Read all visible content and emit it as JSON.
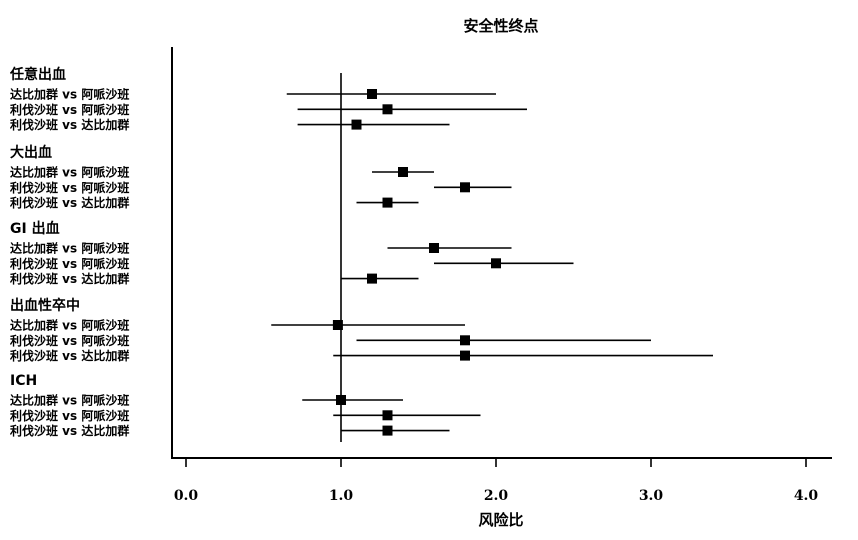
{
  "chart_data": {
    "type": "forest",
    "title": "安全性终点",
    "xlabel": "风险比",
    "xlim": [
      0,
      4.2
    ],
    "xticks": [
      0.0,
      1.0,
      2.0,
      3.0,
      4.0
    ],
    "xtick_labels": [
      "0.0",
      "1.0",
      "2.0",
      "3.0",
      "4.0"
    ],
    "reference_line": 1.0,
    "groups": [
      {
        "label": "任意出血",
        "rows": [
          {
            "label": "达比加群 vs 阿哌沙班",
            "hr": 1.2,
            "lower": 0.65,
            "upper": 2.0
          },
          {
            "label": "利伐沙班 vs 阿哌沙班",
            "hr": 1.3,
            "lower": 0.72,
            "upper": 2.2
          },
          {
            "label": "利伐沙班 vs 达比加群",
            "hr": 1.1,
            "lower": 0.72,
            "upper": 1.7
          }
        ]
      },
      {
        "label": "大出血",
        "rows": [
          {
            "label": "达比加群 vs 阿哌沙班",
            "hr": 1.4,
            "lower": 1.2,
            "upper": 1.6
          },
          {
            "label": "利伐沙班 vs 阿哌沙班",
            "hr": 1.8,
            "lower": 1.6,
            "upper": 2.1
          },
          {
            "label": "利伐沙班 vs 达比加群",
            "hr": 1.3,
            "lower": 1.1,
            "upper": 1.5
          }
        ]
      },
      {
        "label": "GI 出血",
        "rows": [
          {
            "label": "达比加群 vs 阿哌沙班",
            "hr": 1.6,
            "lower": 1.3,
            "upper": 2.1
          },
          {
            "label": "利伐沙班 vs 阿哌沙班",
            "hr": 2.0,
            "lower": 1.6,
            "upper": 2.5
          },
          {
            "label": "利伐沙班 vs 达比加群",
            "hr": 1.2,
            "lower": 1.0,
            "upper": 1.5
          }
        ]
      },
      {
        "label": "出血性卒中",
        "rows": [
          {
            "label": "达比加群 vs 阿哌沙班",
            "hr": 0.98,
            "lower": 0.55,
            "upper": 1.8
          },
          {
            "label": "利伐沙班 vs 阿哌沙班",
            "hr": 1.8,
            "lower": 1.1,
            "upper": 3.0
          },
          {
            "label": "利伐沙班 vs 达比加群",
            "hr": 1.8,
            "lower": 0.95,
            "upper": 3.4
          }
        ]
      },
      {
        "label": "ICH",
        "rows": [
          {
            "label": "达比加群 vs 阿哌沙班",
            "hr": 1.0,
            "lower": 0.75,
            "upper": 1.4
          },
          {
            "label": "利伐沙班 vs 阿哌沙班",
            "hr": 1.3,
            "lower": 0.95,
            "upper": 1.9
          },
          {
            "label": "利伐沙班 vs 达比加群",
            "hr": 1.3,
            "lower": 1.0,
            "upper": 1.7
          }
        ]
      }
    ]
  }
}
